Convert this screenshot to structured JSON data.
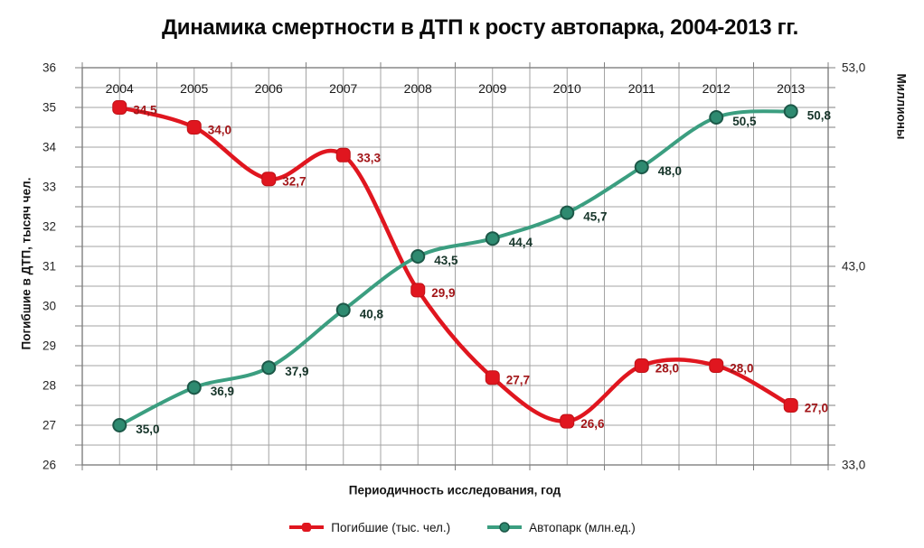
{
  "chart_data": {
    "type": "line",
    "title": "Динамика смертности в ДТП к росту автопарка, 2004-2013 гг.",
    "categories": [
      "2004",
      "2005",
      "2006",
      "2007",
      "2008",
      "2009",
      "2010",
      "2011",
      "2012",
      "2013"
    ],
    "series": [
      {
        "name": "Погибшие (тыс. чел.)",
        "axis": "left",
        "values": [
          34.5,
          34.0,
          32.7,
          33.3,
          29.9,
          27.7,
          26.6,
          28.0,
          28.0,
          27.0
        ],
        "color": "#e0161f",
        "marker": "rounded-square",
        "marker_fill": "#e0161f",
        "marker_stroke": "#c01016",
        "label_color": "#a21518",
        "plot_offset": 0.5
      },
      {
        "name": "Автопарк (млн.ед.)",
        "axis": "right",
        "values": [
          35.0,
          36.9,
          37.9,
          40.8,
          43.5,
          44.4,
          45.7,
          48.0,
          50.5,
          50.8
        ],
        "color": "#3b9e80",
        "marker": "circle",
        "marker_fill": "#2e8a70",
        "marker_stroke": "#1c5848",
        "label_color": "#17352a",
        "plot_offset": 0
      }
    ],
    "left_axis": {
      "title": "Погибшие в ДТП, тысяч чел.",
      "min": 26,
      "max": 36,
      "label_step": 1,
      "grid_step": 0.5
    },
    "right_axis": {
      "title": "Миллионы",
      "min": 33,
      "max": 53,
      "tick_values": [
        53,
        43,
        33
      ]
    },
    "x_axis": {
      "title": "Периодичность исследования, год"
    },
    "legend": {
      "position": "bottom"
    },
    "grid": true,
    "smooth_lines": true,
    "decimal_separator": ",",
    "colors": {
      "gridline": "#a3a3a3",
      "plot_border": "#7f7f7f",
      "tick": "#7f7f7f",
      "tick_label": "#262626",
      "year_label": "#1a1a1a"
    }
  }
}
